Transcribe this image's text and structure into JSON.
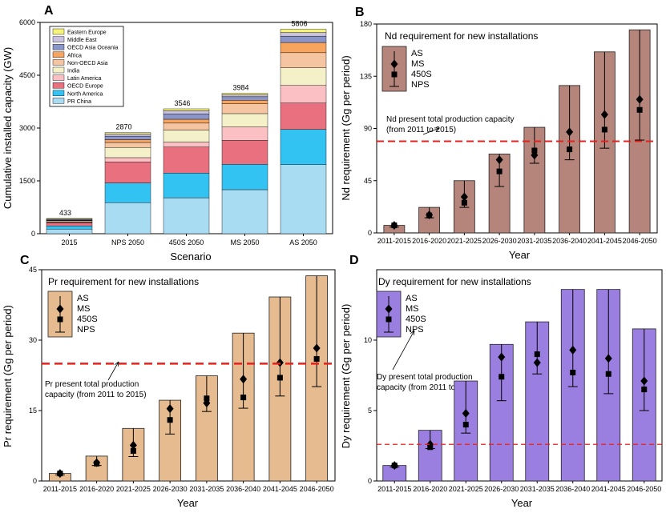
{
  "panels": {
    "A": {
      "letter": "A",
      "xlabel": "Scenario",
      "ylabel": "Cumulative installed capacity (GW)",
      "chart_data": {
        "type": "bar",
        "stacked": true,
        "categories": [
          "2015",
          "NPS 2050",
          "450S 2050",
          "MS 2050",
          "AS 2050"
        ],
        "totals": [
          433,
          2870,
          3546,
          3984,
          5806
        ],
        "total_labels": [
          "433",
          "2870",
          "3546",
          "3984",
          "5806"
        ],
        "ylim": [
          0,
          6000
        ],
        "yticks": [
          0,
          1500,
          3000,
          4500,
          6000
        ],
        "ytick_labels": [
          "0",
          "1500",
          "3000",
          "4500",
          "6000"
        ],
        "series": [
          {
            "name": "PR China",
            "color": "#a8dcf2",
            "values": [
              130,
              880,
              1020,
              1250,
              1960
            ]
          },
          {
            "name": "North America",
            "color": "#33c3f2",
            "values": [
              90,
              560,
              700,
              720,
              1000
            ]
          },
          {
            "name": "OECD Europe",
            "color": "#e8707f",
            "values": [
              90,
              600,
              740,
              680,
              750
            ]
          },
          {
            "name": "Latin America",
            "color": "#fbc0c4",
            "values": [
              10,
              120,
              140,
              380,
              500
            ]
          },
          {
            "name": "India",
            "color": "#f4f0c8",
            "values": [
              20,
              290,
              340,
              380,
              500
            ]
          },
          {
            "name": "Non-OECD Asia",
            "color": "#f5c4a0",
            "values": [
              30,
              140,
              200,
              280,
              430
            ]
          },
          {
            "name": "Africa",
            "color": "#f7a45e",
            "values": [
              10,
              80,
              110,
              100,
              290
            ]
          },
          {
            "name": "OECD Asia Oceania",
            "color": "#8a95c9",
            "values": [
              25,
              100,
              150,
              100,
              180
            ]
          },
          {
            "name": "Middle East",
            "color": "#c9c2e0",
            "values": [
              10,
              60,
              90,
              50,
              100
            ]
          },
          {
            "name": "Eastern Europe",
            "color": "#f6f27a",
            "values": [
              18,
              40,
              56,
              44,
              96
            ]
          }
        ],
        "legend_position": "top-left"
      }
    },
    "B": {
      "letter": "B",
      "title": "Nd requirement for new installations",
      "xlabel": "Year",
      "ylabel": "Nd requirement (Gg per period)",
      "note": [
        "Nd present total production capacity",
        "(from 2011 to 2015)"
      ],
      "chart_data": {
        "type": "bar",
        "categories": [
          "2011-2015",
          "2016-2020",
          "2021-2025",
          "2026-2030",
          "2031-2035",
          "2036-2040",
          "2041-2045",
          "2046-2050"
        ],
        "ylim": [
          0,
          180
        ],
        "yticks": [
          0,
          45,
          90,
          135,
          180
        ],
        "ytick_labels": [
          "0",
          "45",
          "90",
          "135",
          "180"
        ],
        "series": [
          {
            "name": "AS",
            "marker": "bar",
            "values": [
              6.5,
              22,
              45,
              68,
              91,
              127,
              156,
              175
            ]
          },
          {
            "name": "MS",
            "marker": "diamond",
            "values": [
              6.5,
              15.5,
              31,
              63,
              67,
              87,
              102,
              115
            ]
          },
          {
            "name": "450S",
            "marker": "square",
            "values": [
              6.5,
              15,
              26,
              53,
              71,
              72,
              89,
              106
            ]
          },
          {
            "name": "NPS",
            "marker": "whisker-low",
            "values": [
              5,
              13,
              22,
              40,
              60,
              63,
              73,
              80
            ]
          }
        ],
        "reference_line": {
          "value": 79,
          "color": "#e8201c"
        },
        "bar_color": "#b5857b",
        "legend_position": "top-left"
      }
    },
    "C": {
      "letter": "C",
      "title": "Pr requirement for new installations",
      "xlabel": "Year",
      "ylabel": "Pr requirement (Gg per period)",
      "note": [
        "Pr present total production",
        "capacity  (from 2011 to 2015)"
      ],
      "chart_data": {
        "type": "bar",
        "categories": [
          "2011-2015",
          "2016-2020",
          "2021-2025",
          "2026-2030",
          "2031-2035",
          "2036-2040",
          "2041-2045",
          "2046-2050"
        ],
        "ylim": [
          0,
          45
        ],
        "yticks": [
          0,
          15,
          30,
          45
        ],
        "ytick_labels": [
          "0",
          "15",
          "30",
          "45"
        ],
        "series": [
          {
            "name": "AS",
            "marker": "bar",
            "values": [
              1.6,
              5.3,
              11.2,
              17.2,
              22.4,
              31.5,
              39.2,
              43.7
            ]
          },
          {
            "name": "MS",
            "marker": "diamond",
            "values": [
              1.6,
              3.9,
              7.6,
              15.4,
              16.6,
              21.7,
              25.2,
              28.3
            ]
          },
          {
            "name": "450S",
            "marker": "square",
            "values": [
              1.6,
              3.7,
              6.4,
              13.0,
              17.6,
              17.8,
              22.0,
              26.0
            ]
          },
          {
            "name": "NPS",
            "marker": "whisker-low",
            "values": [
              1.3,
              3.3,
              5.2,
              10.0,
              14.8,
              15.5,
              18.1,
              20.1
            ]
          }
        ],
        "reference_line": {
          "value": 25,
          "color": "#e8201c"
        },
        "bar_color": "#e6bb8f",
        "legend_position": "top-left"
      }
    },
    "D": {
      "letter": "D",
      "title": "Dy requirement for new installations",
      "xlabel": "Year",
      "ylabel": "Dy requirement (Gg per period)",
      "note": [
        "Dy present total production",
        "capacity (from 2011 to 2015)"
      ],
      "chart_data": {
        "type": "bar",
        "categories": [
          "2011-2015",
          "2016-2020",
          "2021-2025",
          "2026-2030",
          "2031-2035",
          "2036-2040",
          "2041-2045",
          "2046-2050"
        ],
        "ylim": [
          0,
          15
        ],
        "yticks": [
          0,
          5,
          10
        ],
        "ytick_labels": [
          "0",
          "5",
          "10"
        ],
        "series": [
          {
            "name": "AS",
            "marker": "bar",
            "values": [
              1.1,
              3.6,
              7.1,
              9.7,
              11.3,
              13.6,
              13.6,
              10.8
            ]
          },
          {
            "name": "MS",
            "marker": "diamond",
            "values": [
              1.1,
              2.6,
              4.8,
              8.8,
              8.4,
              9.3,
              8.7,
              7.1
            ]
          },
          {
            "name": "450S",
            "marker": "square",
            "values": [
              1.1,
              2.4,
              4.0,
              7.4,
              9.0,
              7.7,
              7.6,
              6.5
            ]
          },
          {
            "name": "NPS",
            "marker": "whisker-low",
            "values": [
              1.0,
              2.3,
              3.4,
              5.7,
              7.6,
              6.7,
              6.2,
              5.0
            ]
          }
        ],
        "reference_line": {
          "value": 2.6,
          "color": "#e8201c"
        },
        "bar_color": "#9b7fe0",
        "legend_position": "top-left"
      }
    }
  }
}
